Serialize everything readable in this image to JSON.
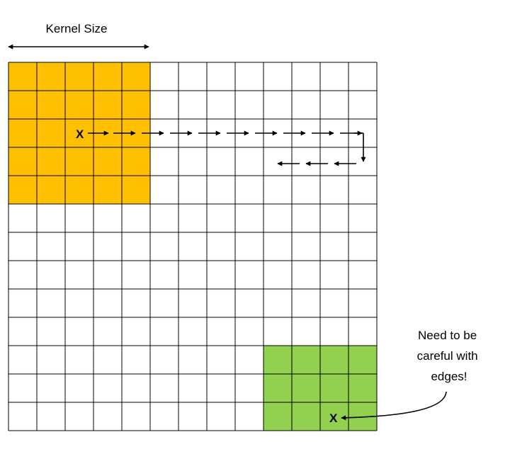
{
  "kernel_label": "Kernel Size",
  "marker_label": "X",
  "edge_note": [
    "Need to be",
    "careful with",
    "edges!"
  ],
  "grid": {
    "cols": 13,
    "rows": 13
  },
  "kernels": [
    {
      "name": "kernel-orange",
      "col_start": 0,
      "row_start": 0,
      "cols": 5,
      "rows": 5,
      "color": "#FFC000"
    },
    {
      "name": "kernel-green",
      "col_start": 9,
      "row_start": 10,
      "cols": 4,
      "rows": 3,
      "color": "#92D050"
    }
  ],
  "colors": {
    "grid_line": "#000000",
    "arrow": "#000000",
    "background": "#FFFFFF"
  }
}
